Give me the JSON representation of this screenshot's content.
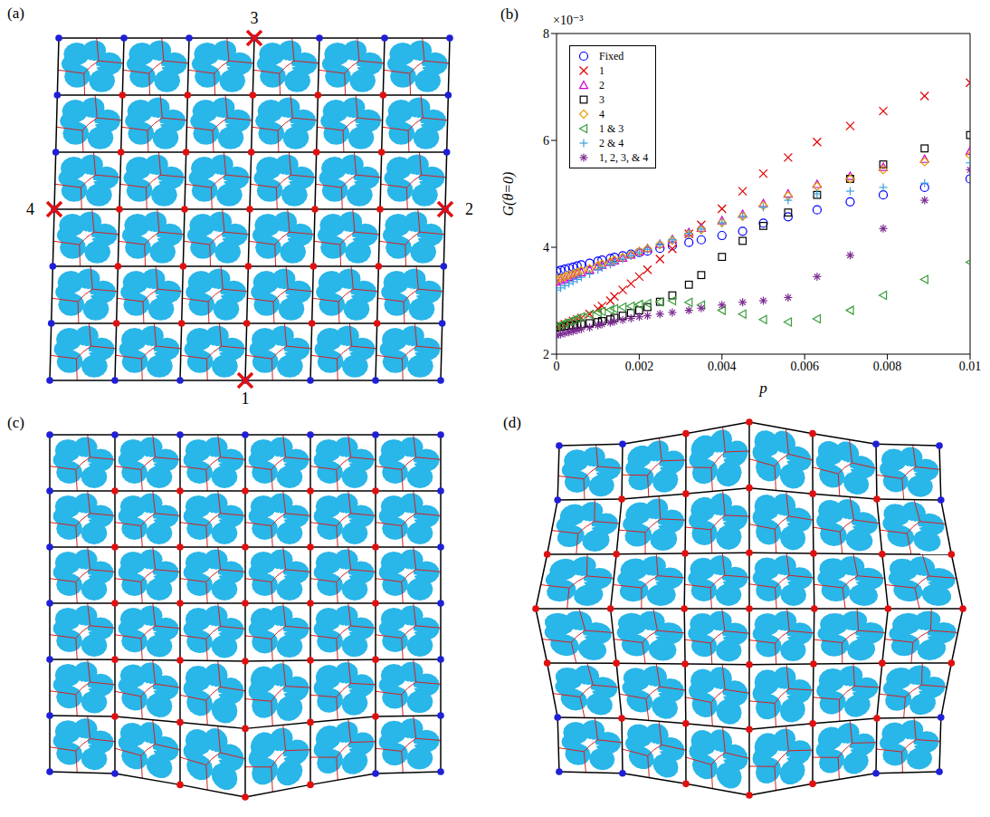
{
  "chart_data": {
    "type": "scatter",
    "panel_label": "(b)",
    "x_label": "p",
    "y_label": "G(θ=0)",
    "y_scale_label": "×10⁻³",
    "xlim": [
      0,
      0.01
    ],
    "xticks": [
      0,
      0.002,
      0.004,
      0.006,
      0.008,
      0.01
    ],
    "ylim": [
      2,
      8
    ],
    "yticks": [
      2,
      4,
      6,
      8
    ],
    "grid": false,
    "legend": "upper left",
    "x": [
      0,
      0.0001,
      0.0002,
      0.0003,
      0.0004,
      0.0005,
      0.0006,
      0.0008,
      0.001,
      0.0011,
      0.0013,
      0.0014,
      0.0016,
      0.0018,
      0.002,
      0.0022,
      0.0025,
      0.0028,
      0.0032,
      0.0035,
      0.004,
      0.0045,
      0.005,
      0.0056,
      0.0063,
      0.0071,
      0.0079,
      0.0089,
      0.01
    ],
    "series": [
      {
        "name": "Fixed",
        "color": "#0000ff",
        "marker": "circle",
        "values": [
          3.55,
          3.57,
          3.59,
          3.61,
          3.63,
          3.65,
          3.67,
          3.7,
          3.74,
          3.76,
          3.79,
          3.81,
          3.84,
          3.87,
          3.9,
          3.93,
          3.98,
          4.03,
          4.09,
          4.14,
          4.22,
          4.3,
          4.45,
          4.57,
          4.7,
          4.85,
          4.98,
          5.12,
          5.28
        ]
      },
      {
        "name": "1",
        "color": "#e00000",
        "marker": "x",
        "values": [
          2.5,
          2.53,
          2.56,
          2.59,
          2.62,
          2.65,
          2.68,
          2.75,
          2.85,
          2.9,
          3.0,
          3.08,
          3.2,
          3.32,
          3.45,
          3.58,
          3.78,
          3.97,
          4.25,
          4.42,
          4.72,
          5.05,
          5.38,
          5.68,
          5.97,
          6.27,
          6.55,
          6.83,
          7.08
        ]
      },
      {
        "name": "2",
        "color": "#d000d0",
        "marker": "triangle",
        "values": [
          3.35,
          3.38,
          3.41,
          3.44,
          3.47,
          3.5,
          3.53,
          3.58,
          3.64,
          3.67,
          3.72,
          3.75,
          3.8,
          3.86,
          3.92,
          3.98,
          4.06,
          4.15,
          4.28,
          4.36,
          4.5,
          4.62,
          4.82,
          5.0,
          5.18,
          5.33,
          5.5,
          5.65,
          5.8
        ]
      },
      {
        "name": "3",
        "color": "#000000",
        "marker": "square",
        "values": [
          2.5,
          2.51,
          2.52,
          2.53,
          2.54,
          2.55,
          2.56,
          2.58,
          2.6,
          2.62,
          2.65,
          2.68,
          2.72,
          2.77,
          2.82,
          2.88,
          2.98,
          3.1,
          3.3,
          3.48,
          3.82,
          4.12,
          4.4,
          4.65,
          4.98,
          5.28,
          5.55,
          5.85,
          6.1
        ]
      },
      {
        "name": "4",
        "color": "#e0a000",
        "marker": "diamond",
        "values": [
          3.4,
          3.42,
          3.45,
          3.48,
          3.5,
          3.53,
          3.56,
          3.6,
          3.66,
          3.69,
          3.73,
          3.76,
          3.81,
          3.86,
          3.92,
          3.97,
          4.05,
          4.13,
          4.25,
          4.33,
          4.46,
          4.58,
          4.78,
          4.96,
          5.14,
          5.28,
          5.45,
          5.6,
          5.72
        ]
      },
      {
        "name": "1 & 3",
        "color": "#3c9c3c",
        "marker": "triangle-left",
        "values": [
          2.52,
          2.55,
          2.58,
          2.61,
          2.64,
          2.67,
          2.7,
          2.74,
          2.78,
          2.8,
          2.83,
          2.85,
          2.88,
          2.9,
          2.93,
          2.95,
          2.98,
          3.0,
          2.97,
          2.92,
          2.82,
          2.75,
          2.65,
          2.6,
          2.66,
          2.82,
          3.1,
          3.4,
          3.72
        ]
      },
      {
        "name": "2 & 4",
        "color": "#3aa0e0",
        "marker": "plus",
        "values": [
          3.2,
          3.24,
          3.28,
          3.32,
          3.36,
          3.4,
          3.44,
          3.5,
          3.58,
          3.62,
          3.68,
          3.72,
          3.78,
          3.84,
          3.9,
          3.96,
          4.05,
          4.14,
          4.26,
          4.34,
          4.46,
          4.58,
          4.75,
          4.88,
          5.0,
          5.05,
          5.12,
          5.2,
          5.58
        ]
      },
      {
        "name": "1, 2, 3, & 4",
        "color": "#7a2a90",
        "marker": "star",
        "values": [
          2.35,
          2.37,
          2.39,
          2.41,
          2.43,
          2.45,
          2.47,
          2.5,
          2.54,
          2.56,
          2.59,
          2.61,
          2.64,
          2.67,
          2.7,
          2.72,
          2.75,
          2.78,
          2.82,
          2.86,
          2.92,
          2.97,
          3.0,
          3.06,
          3.45,
          3.85,
          4.35,
          4.88,
          5.45
        ]
      }
    ]
  },
  "diagrams": [
    {
      "panel_label": "(a)",
      "sites": [
        "1",
        "2",
        "3",
        "4"
      ]
    },
    {
      "panel_label": "(c)"
    },
    {
      "panel_label": "(d)"
    }
  ]
}
